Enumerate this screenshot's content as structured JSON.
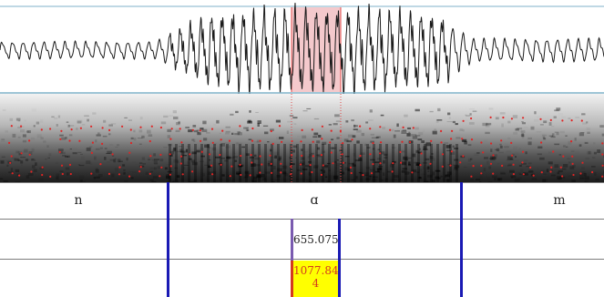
{
  "colors": {
    "waveform_line": "#1a1a1a",
    "selection_fill": "#f4c9cc",
    "selection_edge": "#e04a4a",
    "separator": "#7fb2c8",
    "formant_dot": "#e02424",
    "boundary": "#1a1ab4",
    "value_highlight": "#ffff00",
    "value_text": "#d43a1e"
  },
  "tiers": {
    "segments": [
      {
        "label": "n"
      },
      {
        "label": "ɑ"
      },
      {
        "label": "m"
      }
    ],
    "tier2_value": "655.075",
    "tier3_value_line1": "1077.84",
    "tier3_value_line2": "4"
  }
}
